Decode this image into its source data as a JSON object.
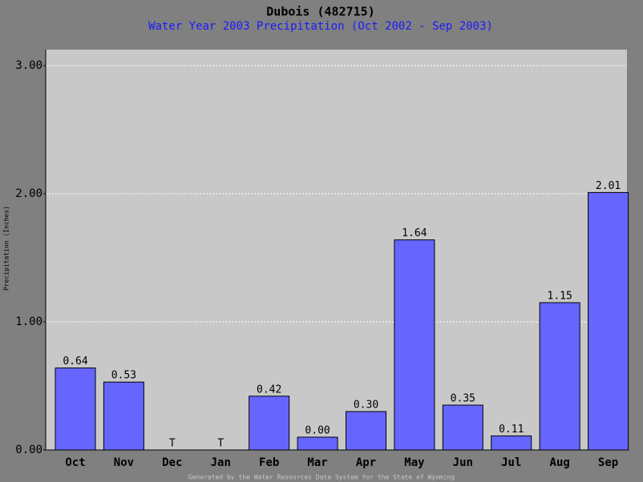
{
  "chart_data": {
    "type": "bar",
    "title": "Dubois (482715)",
    "subtitle": "Water Year 2003 Precipitation (Oct 2002 - Sep 2003)",
    "y_label": "Precipitation (Inches)",
    "footer": "Generated by the Water Resources Data System for the State of Wyoming",
    "categories": [
      "Oct",
      "Nov",
      "Dec",
      "Jan",
      "Feb",
      "Mar",
      "Apr",
      "May",
      "Jun",
      "Jul",
      "Aug",
      "Sep"
    ],
    "values": [
      0.64,
      0.53,
      null,
      null,
      0.42,
      0,
      0.3,
      1.64,
      0.35,
      0.11,
      1.15,
      2.01
    ],
    "value_labels": [
      "0.64",
      "0.53",
      "T",
      "T",
      "0.42",
      "0.00",
      "0.30",
      "1.64",
      "0.35",
      "0.11",
      "1.15",
      "2.01"
    ],
    "color": "#6666ff",
    "ylim": [
      0,
      3.125
    ],
    "yticks": [
      {
        "value": 0,
        "label": "0.00"
      },
      {
        "value": 1,
        "label": "1.00"
      },
      {
        "value": 2,
        "label": "2.00"
      },
      {
        "value": 3,
        "label": "3.00"
      }
    ],
    "grid": true
  }
}
